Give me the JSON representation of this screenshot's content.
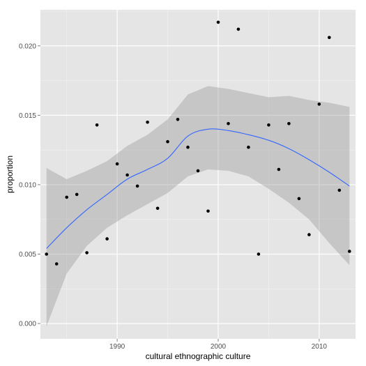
{
  "chart_data": {
    "type": "scatter",
    "title": "",
    "xlabel": "cultural ethnographic culture",
    "ylabel": "proportion",
    "xlim": [
      1982.4,
      2013.6
    ],
    "ylim": [
      -0.0011,
      0.0226
    ],
    "x_ticks": [
      1990,
      2000,
      2010
    ],
    "x_tick_labels": [
      "1990",
      "2000",
      "2010"
    ],
    "y_ticks": [
      0.0,
      0.005,
      0.01,
      0.015,
      0.02
    ],
    "y_tick_labels": [
      "0.000",
      "0.005",
      "0.010",
      "0.015",
      "0.020"
    ],
    "grid": true,
    "legend": "none",
    "colors": {
      "panel_background": "#e5e5e5",
      "grid_major": "#ffffff",
      "grid_minor": "#f2f2f2",
      "points": "#000000",
      "smooth_line": "#3366ff",
      "confidence_band": "#999999"
    },
    "points": [
      {
        "x": 1983,
        "y": 0.005
      },
      {
        "x": 1984,
        "y": 0.0043
      },
      {
        "x": 1985,
        "y": 0.0091
      },
      {
        "x": 1986,
        "y": 0.0093
      },
      {
        "x": 1987,
        "y": 0.0051
      },
      {
        "x": 1988,
        "y": 0.0143
      },
      {
        "x": 1989,
        "y": 0.0061
      },
      {
        "x": 1990,
        "y": 0.0115
      },
      {
        "x": 1991,
        "y": 0.0107
      },
      {
        "x": 1992,
        "y": 0.0099
      },
      {
        "x": 1993,
        "y": 0.0145
      },
      {
        "x": 1994,
        "y": 0.0083
      },
      {
        "x": 1995,
        "y": 0.0131
      },
      {
        "x": 1996,
        "y": 0.0147
      },
      {
        "x": 1997,
        "y": 0.0127
      },
      {
        "x": 1998,
        "y": 0.011
      },
      {
        "x": 1999,
        "y": 0.0081
      },
      {
        "x": 2000,
        "y": 0.0217
      },
      {
        "x": 2001,
        "y": 0.0144
      },
      {
        "x": 2002,
        "y": 0.0212
      },
      {
        "x": 2003,
        "y": 0.0127
      },
      {
        "x": 2004,
        "y": 0.005
      },
      {
        "x": 2005,
        "y": 0.0143
      },
      {
        "x": 2006,
        "y": 0.0111
      },
      {
        "x": 2007,
        "y": 0.0144
      },
      {
        "x": 2008,
        "y": 0.009
      },
      {
        "x": 2009,
        "y": 0.0064
      },
      {
        "x": 2010,
        "y": 0.0158
      },
      {
        "x": 2011,
        "y": 0.0206
      },
      {
        "x": 2012,
        "y": 0.0096
      },
      {
        "x": 2013,
        "y": 0.0052
      }
    ],
    "smooth": {
      "x": [
        1983,
        1985,
        1987,
        1989,
        1991,
        1993,
        1995,
        1997,
        1999,
        2001,
        2003,
        2005,
        2007,
        2009,
        2011,
        2013
      ],
      "y": [
        0.0054,
        0.0069,
        0.0082,
        0.0093,
        0.0104,
        0.0111,
        0.0119,
        0.0135,
        0.014,
        0.0139,
        0.0136,
        0.0132,
        0.0126,
        0.0118,
        0.0109,
        0.0099
      ],
      "lower": [
        -0.0002,
        0.0036,
        0.0056,
        0.0069,
        0.0078,
        0.0086,
        0.0094,
        0.0106,
        0.0111,
        0.011,
        0.0106,
        0.0097,
        0.0087,
        0.0075,
        0.0058,
        0.0042
      ],
      "upper": [
        0.0112,
        0.0104,
        0.011,
        0.0117,
        0.0128,
        0.0136,
        0.0147,
        0.0165,
        0.0171,
        0.0169,
        0.0166,
        0.0163,
        0.0164,
        0.0161,
        0.0159,
        0.0156
      ]
    }
  }
}
